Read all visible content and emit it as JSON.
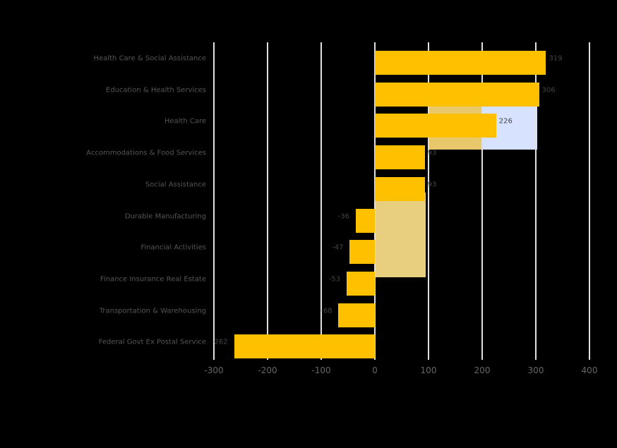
{
  "chart_data": {
    "type": "bar",
    "orientation": "horizontal",
    "title": "",
    "xlabel": "",
    "ylabel": "",
    "xlim": [
      -300,
      400
    ],
    "xticks": [
      "-300",
      "-200",
      "-100",
      "0",
      "100",
      "200",
      "300",
      "400"
    ],
    "grid": true,
    "legend": null,
    "categories": [
      "Health Care & Social Assistance",
      "Education & Health Services",
      "Health Care",
      "Accommodations & Food Services",
      "Social Assistance",
      "Durable Manufacturing",
      "Financial Activities",
      "Finance Insurance Real Estate",
      "Transportation & Warehousing",
      "Federal Govt Ex Postal Service"
    ],
    "values": [
      319,
      306,
      226,
      93,
      93,
      -36,
      -47,
      -53,
      -68,
      -262
    ],
    "value_labels": [
      "319",
      "306",
      "226",
      "93",
      "93",
      "-36",
      "-47",
      "-53",
      "-68",
      "-262"
    ],
    "bar_color": "#ffc000"
  }
}
